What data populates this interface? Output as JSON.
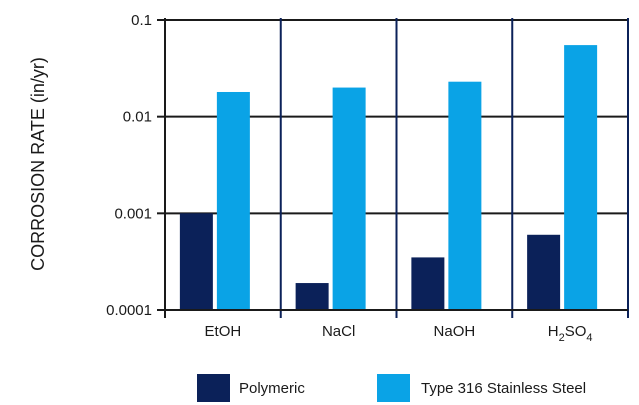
{
  "chart_data": {
    "type": "bar",
    "ylabel": "CORROSION RATE (in/yr)",
    "yscale": "log",
    "ylim": [
      0.0001,
      0.1
    ],
    "yticks": [
      {
        "value": 0.1,
        "label": "0.1"
      },
      {
        "value": 0.01,
        "label": "0.01"
      },
      {
        "value": 0.001,
        "label": "0.001"
      },
      {
        "value": 0.0001,
        "label": "0.0001"
      }
    ],
    "categories": [
      {
        "label": "EtOH"
      },
      {
        "label": "NaCl"
      },
      {
        "label": "NaOH"
      },
      {
        "label": "H",
        "sub1": "2",
        "mid": "SO",
        "sub2": "4"
      }
    ],
    "grid": true,
    "legend_position": "bottom",
    "series": [
      {
        "name": "Polymeric",
        "color": "#0b2159",
        "values": [
          0.001,
          0.00019,
          0.00035,
          0.0006
        ]
      },
      {
        "name": "Type 316 Stainless Steel",
        "color": "#0aa3e6",
        "values": [
          0.018,
          0.02,
          0.023,
          0.055
        ]
      }
    ]
  }
}
